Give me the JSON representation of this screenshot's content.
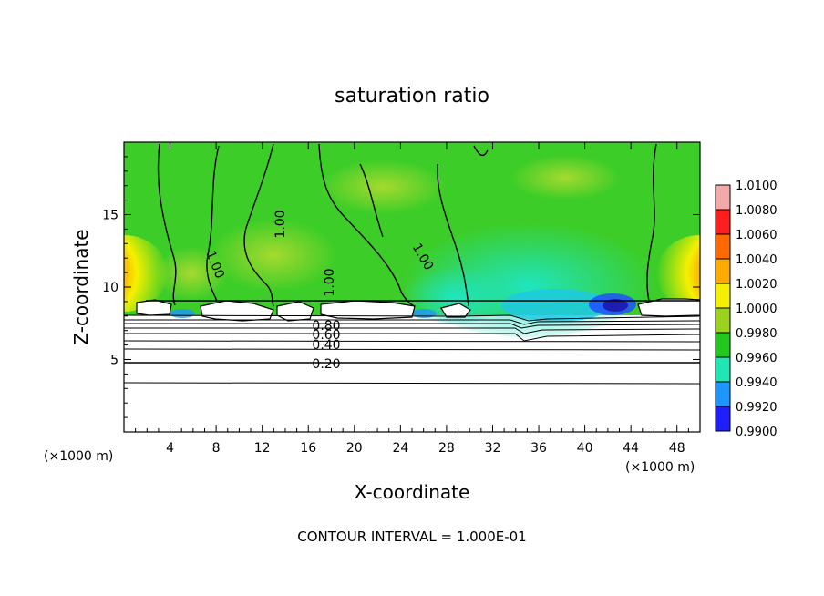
{
  "chart_data": {
    "type": "heatmap",
    "title": "saturation ratio",
    "xlabel": "X-coordinate",
    "ylabel": "Z-coordinate",
    "x_unit": "(×1000 m)",
    "z_unit": "(×1000 m)",
    "xlim": [
      0,
      50
    ],
    "ylim": [
      0,
      20
    ],
    "x_ticks": [
      "4",
      "8",
      "12",
      "16",
      "20",
      "24",
      "28",
      "32",
      "36",
      "40",
      "44",
      "48"
    ],
    "x_tick_values": [
      4,
      8,
      12,
      16,
      20,
      24,
      28,
      32,
      36,
      40,
      44,
      48
    ],
    "y_ticks": [
      "5",
      "10",
      "15"
    ],
    "y_tick_values": [
      5,
      10,
      15
    ],
    "colorbar": {
      "labels": [
        "1.0100",
        "1.0080",
        "1.0060",
        "1.0040",
        "1.0020",
        "1.0000",
        "0.9980",
        "0.9960",
        "0.9940",
        "0.9920",
        "0.9900"
      ],
      "values": [
        1.01,
        1.008,
        1.006,
        1.004,
        1.002,
        1.0,
        0.998,
        0.996,
        0.994,
        0.992,
        0.99
      ],
      "colors": [
        "#f4a8a8",
        "#ff1e1e",
        "#ff6a00",
        "#ffaa00",
        "#f5f000",
        "#9ad21e",
        "#22c81e",
        "#1ee6b4",
        "#1e96ff",
        "#1e1eff",
        "#6400c8"
      ]
    },
    "contour_labels": [
      "1.00",
      "1.00",
      "1.00",
      "1.00",
      "0.80",
      "0.60",
      "0.40",
      "0.20"
    ],
    "contour_label_values": [
      1.0,
      1.0,
      1.0,
      1.0,
      0.8,
      0.6,
      0.4,
      0.2
    ],
    "footer": "CONTOUR INTERVAL = 1.000E-01"
  }
}
